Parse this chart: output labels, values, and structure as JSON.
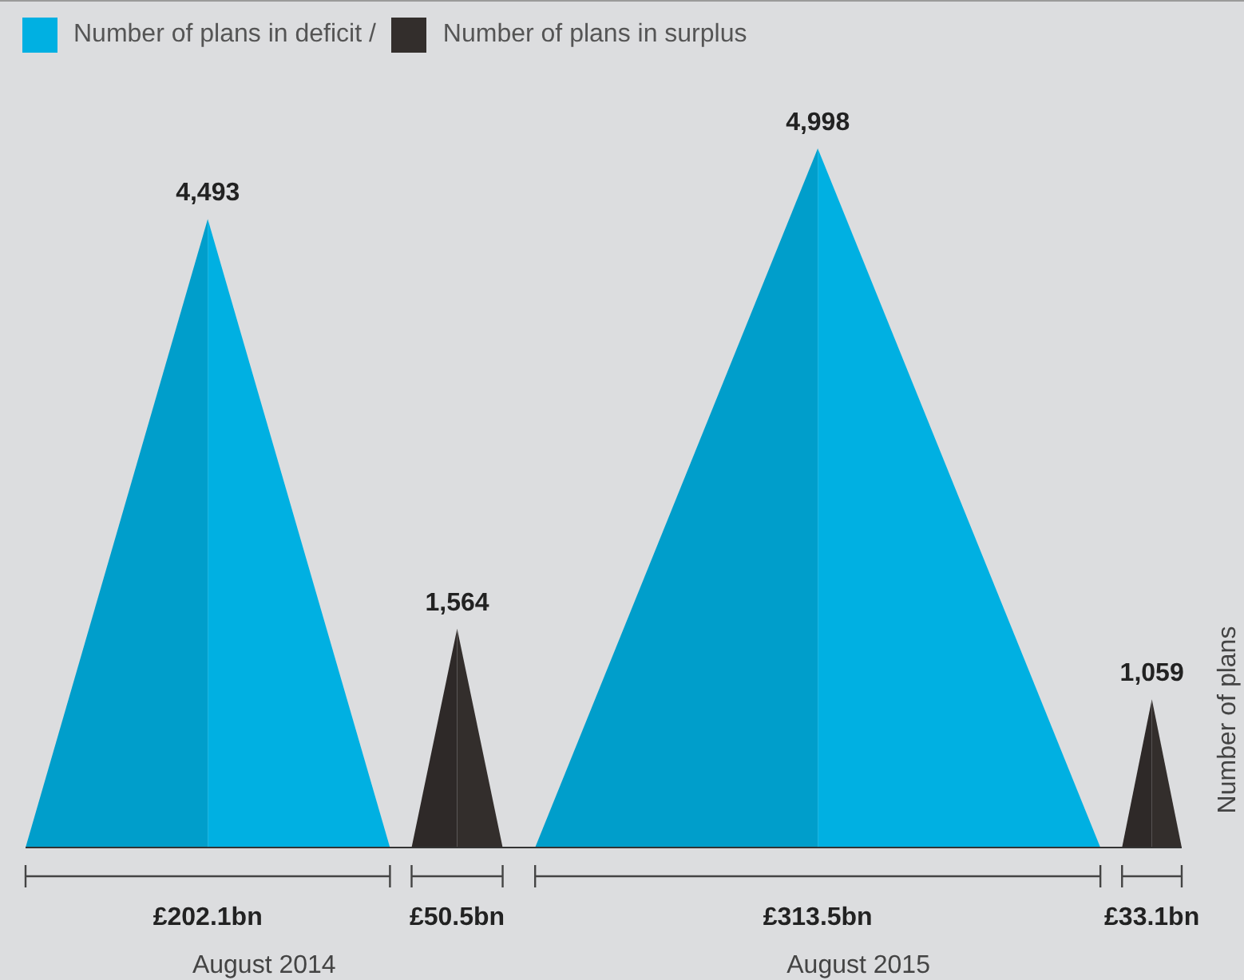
{
  "chart_data": {
    "type": "other",
    "categories": [
      "August 2014",
      "August 2015"
    ],
    "ylabel": "Number of plans",
    "legend": "top left",
    "series": [
      {
        "name": "Number of plans in deficit /",
        "color": "#00b0e2",
        "values": [
          4493,
          4998
        ],
        "value_labels": [
          "4,493",
          "4,998"
        ]
      },
      {
        "name": "Number of plans in surplus",
        "color": "#332e2c",
        "values": [
          1564,
          1059
        ],
        "value_labels": [
          "1,564",
          "1,059"
        ]
      }
    ],
    "annotations": [
      {
        "text": "£202.1bn",
        "x": "August 2014"
      },
      {
        "text": "£50.5bn",
        "x": "August 2014"
      },
      {
        "text": "£313.5bn",
        "x": "August 2015"
      },
      {
        "text": "£33.1bn",
        "x": "August 2015"
      }
    ]
  }
}
